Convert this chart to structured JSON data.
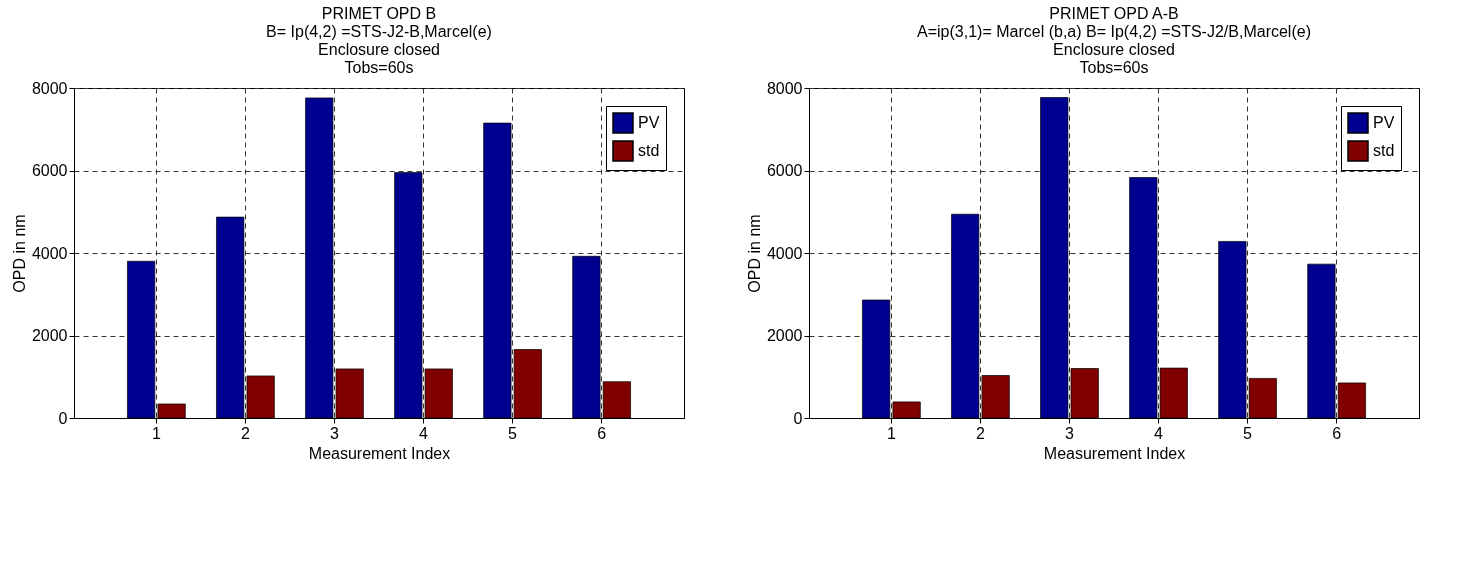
{
  "chart_data": [
    {
      "type": "bar",
      "title": "PRIMET OPD B",
      "subtitle": "B= Ip(4,2) =STS-J2-B,Marcel(e)\nEnclosure closed\nTobs=60s",
      "xlabel": "Measurement Index",
      "ylabel": "OPD in nm",
      "categories": [
        "1",
        "2",
        "3",
        "4",
        "5",
        "6"
      ],
      "series": [
        {
          "name": "PV",
          "color": "#000090",
          "values": [
            3800,
            4870,
            7760,
            5950,
            7150,
            3920
          ]
        },
        {
          "name": "std",
          "color": "#800000",
          "values": [
            340,
            1020,
            1190,
            1190,
            1660,
            880
          ]
        }
      ],
      "ylim": [
        0,
        8000
      ],
      "yticks": [
        0,
        2000,
        4000,
        6000,
        8000
      ],
      "grid": true,
      "legend": "top right"
    },
    {
      "type": "bar",
      "title": "PRIMET OPD A-B",
      "subtitle": "A=ip(3,1)= Marcel (b,a)  B= Ip(4,2) =STS-J2/B,Marcel(e)\nEnclosure closed\nTobs=60s",
      "xlabel": "Measurement Index",
      "ylabel": "OPD in nm",
      "categories": [
        "1",
        "2",
        "3",
        "4",
        "5",
        "6"
      ],
      "series": [
        {
          "name": "PV",
          "color": "#000090",
          "values": [
            2860,
            4940,
            7770,
            5830,
            4280,
            3730
          ]
        },
        {
          "name": "std",
          "color": "#800000",
          "values": [
            390,
            1030,
            1200,
            1210,
            960,
            850
          ]
        }
      ],
      "ylim": [
        0,
        8000
      ],
      "yticks": [
        0,
        2000,
        4000,
        6000,
        8000
      ],
      "grid": true,
      "legend": "top right"
    }
  ]
}
